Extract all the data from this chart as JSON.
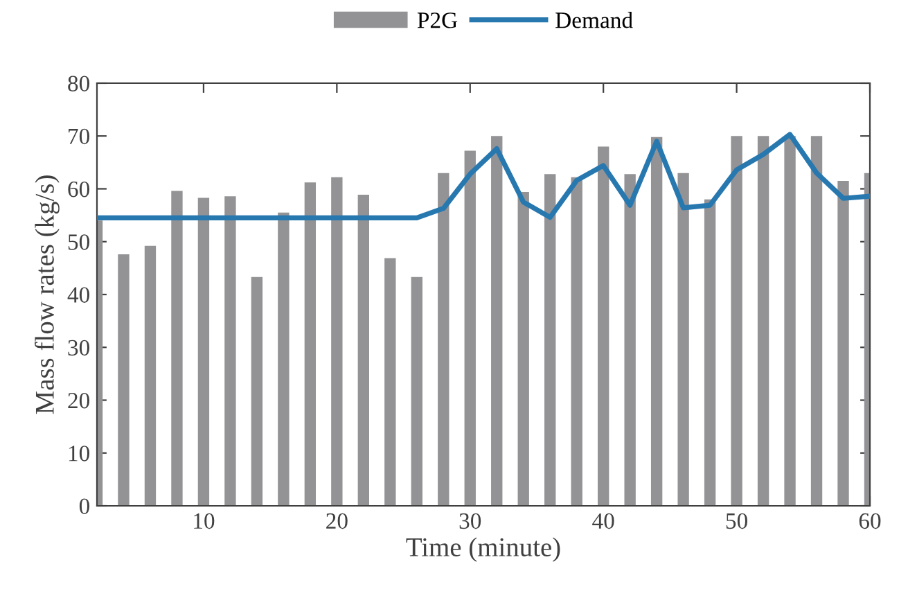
{
  "chart_data": {
    "type": "bar",
    "xlabel": "Time (minute)",
    "ylabel": "Mass flow rates (kg/s)",
    "x": [
      2,
      4,
      6,
      8,
      10,
      12,
      14,
      16,
      18,
      20,
      22,
      24,
      26,
      28,
      30,
      32,
      34,
      36,
      38,
      40,
      42,
      44,
      46,
      48,
      50,
      52,
      54,
      56,
      58,
      60
    ],
    "series": [
      {
        "name": "P2G",
        "color": "#939396",
        "values": [
          54,
          47.6,
          49.2,
          59.6,
          58.3,
          58.6,
          43.3,
          55.5,
          61.2,
          62.2,
          58.9,
          46.9,
          43.3,
          63,
          67.2,
          70,
          59.4,
          62.8,
          62.2,
          68,
          62.8,
          69.8,
          63,
          58,
          70,
          70,
          70,
          70,
          61.5,
          63
        ]
      },
      {
        "name": "Demand",
        "type": "line",
        "color": "#2878b0",
        "values": [
          54.5,
          54.5,
          54.5,
          54.5,
          54.5,
          54.5,
          54.5,
          54.5,
          54.5,
          54.5,
          54.5,
          54.5,
          54.5,
          56.3,
          62.8,
          67.6,
          57.5,
          54.6,
          61.6,
          64.4,
          56.9,
          69,
          56.4,
          56.9,
          63.6,
          66.5,
          70.3,
          63,
          58.2,
          58.6
        ]
      }
    ],
    "xlim": [
      2,
      60
    ],
    "xticks": [
      10,
      20,
      30,
      40,
      50,
      60
    ],
    "ylim": [
      0,
      80
    ],
    "yticks": [
      0,
      10,
      20,
      30,
      40,
      50,
      60,
      70,
      80
    ],
    "grid": false,
    "legend": "top",
    "marker": "none",
    "line_style": "solid"
  }
}
